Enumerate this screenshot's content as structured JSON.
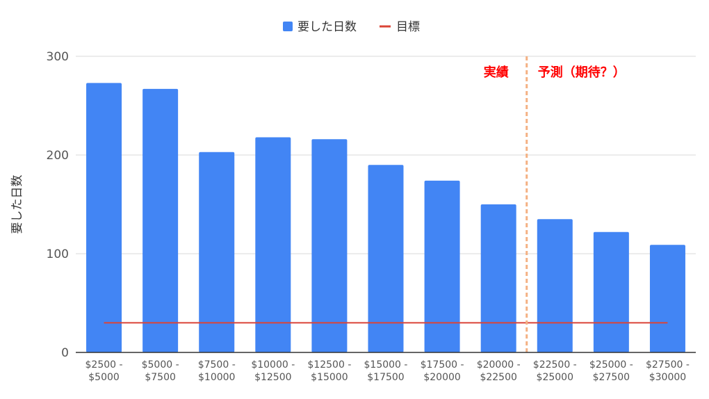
{
  "chart_data": {
    "type": "bar",
    "title": "",
    "xlabel": "",
    "ylabel": "要した日数",
    "ylim": [
      0,
      300
    ],
    "yticks": [
      0,
      100,
      200,
      300
    ],
    "grid": true,
    "legend_position": "top-center",
    "categories": [
      [
        "$2500 -",
        "$5000"
      ],
      [
        "$5000 -",
        "$7500"
      ],
      [
        "$7500 -",
        "$10000"
      ],
      [
        "$10000 -",
        "$12500"
      ],
      [
        "$12500 -",
        "$15000"
      ],
      [
        "$15000 -",
        "$17500"
      ],
      [
        "$17500 -",
        "$20000"
      ],
      [
        "$20000 -",
        "$22500"
      ],
      [
        "$22500 -",
        "$25000"
      ],
      [
        "$25000 -",
        "$27500"
      ],
      [
        "$27500 -",
        "$30000"
      ]
    ],
    "series": [
      {
        "name": "要した日数",
        "kind": "bar",
        "color": "#4285f4",
        "values": [
          273,
          267,
          203,
          218,
          216,
          190,
          174,
          150,
          135,
          122,
          109
        ]
      },
      {
        "name": "目標",
        "kind": "line",
        "color": "#db4437",
        "values": [
          30,
          30,
          30,
          30,
          30,
          30,
          30,
          30,
          30,
          30,
          30
        ]
      }
    ],
    "annotations": {
      "divider_after_category": 7,
      "divider_color": "#f4b183",
      "left_label": "実績",
      "right_label": "予測（期待？）",
      "label_color": "#ff0000"
    }
  }
}
